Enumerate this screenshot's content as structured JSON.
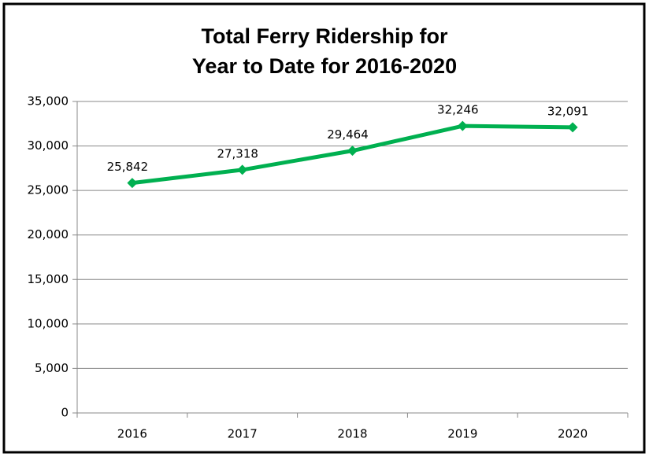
{
  "chart_data": {
    "type": "line",
    "title": [
      "Total Ferry Ridership for",
      "Year to Date for 2016-2020"
    ],
    "categories": [
      "2016",
      "2017",
      "2018",
      "2019",
      "2020"
    ],
    "values": [
      25842,
      27318,
      29464,
      32246,
      32091
    ],
    "value_labels": [
      "25,842",
      "27,318",
      "29,464",
      "32,246",
      "32,091"
    ],
    "color": "#00b050",
    "ylim": [
      0,
      35000
    ],
    "yticks": [
      0,
      {
        "value": 5000,
        "label": "5,000"
      },
      {
        "value": 10000,
        "label": "10,000"
      },
      {
        "value": 15000,
        "label": "15,000"
      },
      {
        "value": 20000,
        "label": "20,000"
      },
      {
        "value": 25000,
        "label": "25,000"
      },
      {
        "value": 30000,
        "label": "30,000"
      },
      {
        "value": 35000,
        "label": "35,000"
      }
    ],
    "grid": true
  }
}
